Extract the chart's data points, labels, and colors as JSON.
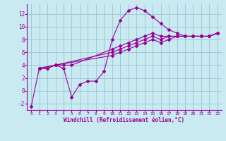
{
  "xlabel": "Windchill (Refroidissement éolien,°C)",
  "background_color": "#c8eaf0",
  "grid_color": "#a0c8d8",
  "line_color": "#990099",
  "xlim": [
    -0.5,
    23.5
  ],
  "ylim": [
    -3.0,
    13.5
  ],
  "yticks": [
    -2,
    0,
    2,
    4,
    6,
    8,
    10,
    12
  ],
  "xticks": [
    0,
    1,
    2,
    3,
    4,
    5,
    6,
    7,
    8,
    9,
    10,
    11,
    12,
    13,
    14,
    15,
    16,
    17,
    18,
    19,
    20,
    21,
    22,
    23
  ],
  "lines": [
    {
      "x": [
        0,
        1,
        2,
        3,
        4,
        5,
        6,
        7,
        8,
        9,
        10,
        11,
        12,
        13,
        14,
        15,
        16,
        17,
        18,
        19,
        20,
        21,
        22,
        23
      ],
      "y": [
        -2.5,
        3.5,
        3.5,
        4.0,
        3.5,
        -1.0,
        1.0,
        1.5,
        1.5,
        3.0,
        8.0,
        11.0,
        12.5,
        13.0,
        12.5,
        11.5,
        10.5,
        9.5,
        9.0,
        8.5,
        8.5,
        8.5,
        8.5,
        9.0
      ]
    },
    {
      "x": [
        1,
        2,
        3,
        4,
        5,
        10,
        11,
        12,
        13,
        14,
        15,
        16,
        17,
        18,
        19,
        20,
        21,
        22,
        23
      ],
      "y": [
        3.5,
        3.5,
        4.0,
        4.0,
        4.0,
        6.5,
        7.0,
        7.5,
        8.0,
        8.5,
        9.0,
        8.5,
        8.5,
        8.5,
        8.5,
        8.5,
        8.5,
        8.5,
        9.0
      ]
    },
    {
      "x": [
        1,
        3,
        10,
        11,
        12,
        13,
        14,
        15,
        16,
        17,
        18,
        19,
        20,
        21,
        22,
        23
      ],
      "y": [
        3.5,
        4.0,
        6.0,
        6.5,
        7.0,
        7.5,
        8.0,
        8.5,
        8.0,
        8.5,
        8.5,
        8.5,
        8.5,
        8.5,
        8.5,
        9.0
      ]
    },
    {
      "x": [
        1,
        3,
        10,
        11,
        12,
        13,
        14,
        15,
        16,
        17,
        18,
        19,
        20,
        21,
        22,
        23
      ],
      "y": [
        3.5,
        4.0,
        5.5,
        6.0,
        6.5,
        7.0,
        7.5,
        8.0,
        7.5,
        8.0,
        8.5,
        8.5,
        8.5,
        8.5,
        8.5,
        9.0
      ]
    }
  ]
}
